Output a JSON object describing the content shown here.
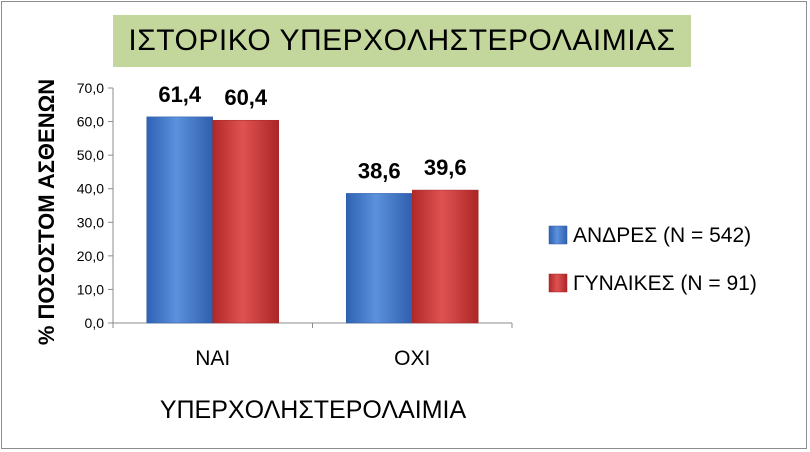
{
  "chart_data": {
    "type": "bar",
    "title": "ΙΣΤΟΡΙΚΟ ΥΠΕΡΧΟΛΗΣΤΕΡΟΛΑΙΜΙΑΣ",
    "xlabel": "ΥΠΕΡΧΟΛΗΣΤΕΡΟΛΑΙΜΙΑ",
    "ylabel": "% ΠΟΣΟΣΤΟΜ ΑΣΘΕΝΩΝ",
    "categories": [
      "ΝΑΙ",
      "ΟΧΙ"
    ],
    "series": [
      {
        "name": "ΑΝΔΡΕΣ (N = 542)",
        "values": [
          61.4,
          38.6
        ],
        "labels": [
          "61,4",
          "38,6"
        ],
        "color": "#4a7fcf"
      },
      {
        "name": "ΓΥΝΑΙΚΕΣ (N = 91)",
        "values": [
          60.4,
          39.6
        ],
        "labels": [
          "60,4",
          "39,6"
        ],
        "color": "#d23a3a"
      }
    ],
    "ylim": [
      0,
      70
    ],
    "yticks": [
      "0,0",
      "10,0",
      "20,0",
      "30,0",
      "40,0",
      "50,0",
      "60,0",
      "70,0"
    ],
    "legend_position": "right",
    "title_background": "#c3d69b"
  }
}
